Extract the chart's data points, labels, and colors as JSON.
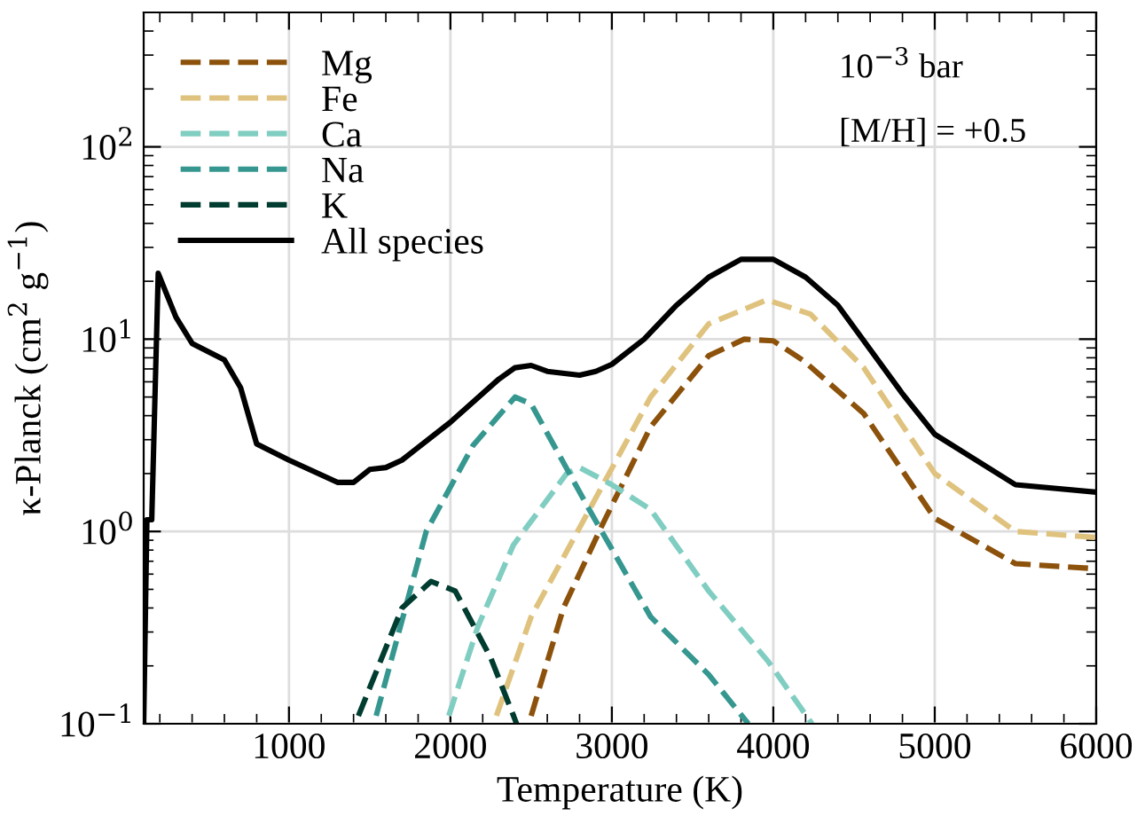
{
  "chart_data": {
    "type": "line",
    "xlabel": "Temperature (K)",
    "ylabel": "κ-Planck (cm$^{2}$ g$^{−1}$)",
    "log": "y",
    "grid": true,
    "legend": "top left",
    "xlim": [
      100,
      6000
    ],
    "xticks": [
      1000,
      2000,
      3000,
      4000,
      5000,
      6000
    ],
    "ylim": [
      0.1,
      500
    ],
    "yticks": [
      {
        "value": 0.1,
        "label": "10$^{−1}$"
      },
      {
        "value": 1,
        "label": "10$^{0}$"
      },
      {
        "value": 10,
        "label": "10$^{1}$"
      },
      {
        "value": 100,
        "label": "10$^{2}$"
      }
    ],
    "annotations": [
      "10$^{−3}$ bar",
      "[M/H] = +0.5"
    ],
    "series": [
      {
        "name": "Mg",
        "color": "#8c510a",
        "line_style": "dashed",
        "x": [
          2500,
          2700,
          2945,
          3240,
          3600,
          3820,
          4000,
          4190,
          4560,
          5000,
          5500,
          6000
        ],
        "values": [
          0.11,
          0.4,
          1.1,
          3.5,
          8.2,
          10,
          9.8,
          7.7,
          4.1,
          1.17,
          0.68,
          0.64
        ]
      },
      {
        "name": "Fe",
        "color": "#dfc27d",
        "line_style": "dashed",
        "x": [
          2285,
          2500,
          2945,
          3240,
          3600,
          3960,
          4230,
          4560,
          5000,
          5500,
          6000
        ],
        "values": [
          0.11,
          0.36,
          1.75,
          5,
          12,
          16,
          13.5,
          7.1,
          2,
          1.0,
          0.93
        ]
      },
      {
        "name": "Ca",
        "color": "#80cdc1",
        "line_style": "dashed",
        "x": [
          1990,
          2170,
          2390,
          2720,
          2800,
          3000,
          3240,
          3600,
          3970,
          4240
        ],
        "values": [
          0.11,
          0.32,
          0.85,
          2.0,
          2.15,
          1.75,
          1.3,
          0.49,
          0.21,
          0.1
        ]
      },
      {
        "name": "Na",
        "color": "#35978f",
        "line_style": "dashed",
        "x": [
          1540,
          1850,
          2140,
          2400,
          2500,
          2860,
          3240,
          3600,
          3845
        ],
        "values": [
          0.11,
          1.0,
          2.8,
          5.0,
          4.6,
          1.3,
          0.36,
          0.18,
          0.1
        ]
      },
      {
        "name": "K",
        "color": "#003c30",
        "line_style": "dashed",
        "x": [
          1430,
          1700,
          1880,
          2030,
          2250,
          2410
        ],
        "values": [
          0.11,
          0.4,
          0.55,
          0.49,
          0.22,
          0.1
        ]
      },
      {
        "name": "All species",
        "color": "#000000",
        "line_style": "solid",
        "x": [
          100,
          120,
          150,
          190,
          300,
          400,
          600,
          700,
          800,
          1000,
          1300,
          1400,
          1500,
          1600,
          1700,
          2000,
          2300,
          2400,
          2500,
          2600,
          2800,
          2900,
          3000,
          3200,
          3400,
          3600,
          3800,
          4000,
          4200,
          4400,
          4800,
          5000,
          5500,
          6000
        ],
        "values": [
          0.1,
          1.15,
          1.15,
          22,
          13,
          9.5,
          7.8,
          5.6,
          2.85,
          2.35,
          1.8,
          1.8,
          2.1,
          2.15,
          2.35,
          3.7,
          6.2,
          7.1,
          7.3,
          6.8,
          6.5,
          6.8,
          7.4,
          10,
          15,
          21,
          26,
          26,
          21,
          15,
          5.2,
          3.2,
          1.75,
          1.6
        ]
      }
    ]
  }
}
